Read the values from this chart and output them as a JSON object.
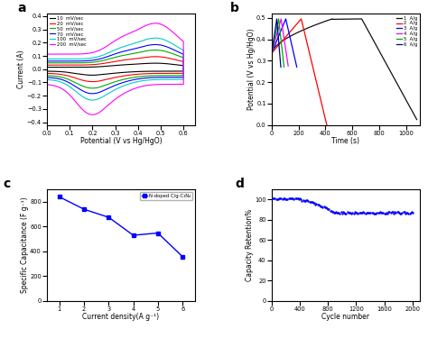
{
  "panel_a": {
    "xlabel": "Potential (V vs Hg/HgO)",
    "ylabel": "Current (A)",
    "xlim": [
      0.0,
      0.65
    ],
    "ylim": [
      -0.42,
      0.42
    ],
    "xticks": [
      0.0,
      0.1,
      0.2,
      0.3,
      0.4,
      0.5,
      0.6
    ],
    "yticks": [
      -0.4,
      -0.3,
      -0.2,
      -0.1,
      0.0,
      0.1,
      0.2,
      0.3,
      0.4
    ],
    "curves": [
      {
        "label": "10  mV/sec",
        "color": "#000000",
        "scale": 0.055
      },
      {
        "label": "20  mV/sec",
        "color": "#ff0000",
        "scale": 0.115
      },
      {
        "label": "50  mV/sec",
        "color": "#00aa00",
        "scale": 0.175
      },
      {
        "label": "70  mV/sec",
        "color": "#0000ff",
        "scale": 0.225
      },
      {
        "label": "100  mV/sec",
        "color": "#00cccc",
        "scale": 0.285
      },
      {
        "label": "200  mV/sec",
        "color": "#ff00ff",
        "scale": 0.42
      }
    ]
  },
  "panel_b": {
    "xlabel": "Time (s)",
    "ylabel": "Potential (V vs Hg/HgO)",
    "xlim": [
      0,
      1100
    ],
    "ylim": [
      0.0,
      0.52
    ],
    "xticks": [
      0,
      200,
      400,
      600,
      800,
      1000
    ],
    "yticks": [
      0.0,
      0.1,
      0.2,
      0.3,
      0.4,
      0.5
    ],
    "v_start": 0.335,
    "v_max": 0.495,
    "curves": [
      {
        "label": "1  A/g",
        "color": "#111111",
        "t_charge": 450,
        "t_discharge": 630,
        "v_end": 0.025
      },
      {
        "label": "2  A/g",
        "color": "#ff0000",
        "t_charge": 220,
        "t_discharge": 190,
        "v_end": 0.0
      },
      {
        "label": "3  A/g",
        "color": "#0000ff",
        "t_charge": 105,
        "t_discharge": 82,
        "v_end": 0.27
      },
      {
        "label": "4  A/g",
        "color": "#ff00ff",
        "t_charge": 70,
        "t_discharge": 53,
        "v_end": 0.275
      },
      {
        "label": "5  A/g",
        "color": "#00aa00",
        "t_charge": 52,
        "t_discharge": 40,
        "v_end": 0.27
      },
      {
        "label": "6  A/g",
        "color": "#000099",
        "t_charge": 38,
        "t_discharge": 30,
        "v_end": 0.27
      }
    ]
  },
  "panel_c": {
    "xlabel": "Current density(A g⁻¹)",
    "ylabel": "Specific Capacitance (F g⁻¹)",
    "xlim": [
      0.5,
      6.5
    ],
    "ylim": [
      0,
      900
    ],
    "xticks": [
      1,
      2,
      3,
      4,
      5,
      6
    ],
    "yticks": [
      0,
      200,
      400,
      600,
      800
    ],
    "x": [
      1,
      2,
      3,
      4,
      5,
      6
    ],
    "y": [
      840,
      740,
      675,
      530,
      548,
      357
    ],
    "color": "#0000ff",
    "label": "N-doped C/g-C₃N₄"
  },
  "panel_d": {
    "xlabel": "Cycle number",
    "ylabel": "Capacity Retention%",
    "xlim": [
      0,
      2100
    ],
    "ylim": [
      0,
      110
    ],
    "xticks": [
      0,
      400,
      800,
      1200,
      1600,
      2000
    ],
    "yticks": [
      0,
      20,
      40,
      60,
      80,
      100
    ],
    "color": "#0000ff"
  }
}
